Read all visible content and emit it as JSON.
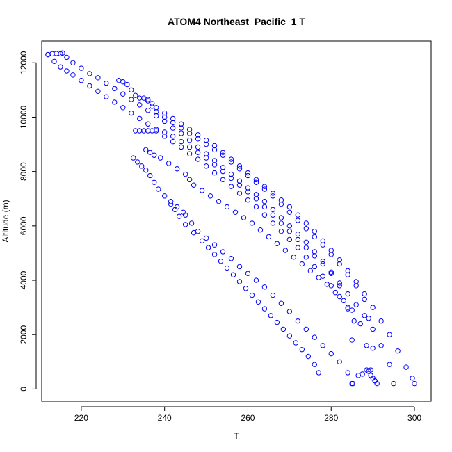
{
  "chart_data": {
    "type": "scatter",
    "title": "ATOM4 Northeast_Pacific_1 T",
    "xlabel": "T",
    "ylabel": "Altitude (m)",
    "xlim": [
      210.5,
      304.0
    ],
    "ylim": [
      -450,
      12800
    ],
    "x_ticks": [
      220,
      240,
      260,
      280,
      300
    ],
    "y_ticks": [
      0,
      2000,
      4000,
      6000,
      8000,
      10000,
      12000
    ],
    "grid": false,
    "marker": "open-circle",
    "point_color": "#0000ff",
    "series": [
      {
        "x": [
          212.0,
          213.5,
          215.0,
          216.5,
          218.0,
          220.0,
          222.0,
          224.0,
          226.0,
          228.0,
          230.0,
          232.0,
          234.0,
          236.0,
          238.0,
          240.0,
          242.0,
          244.0,
          246.0,
          248.0,
          250.0,
          252.0,
          254.0,
          256.0,
          258.0,
          260.0,
          262.0,
          264.0,
          266.0,
          268.0,
          270.0,
          272.0,
          274.0,
          276.0,
          278.0,
          280.0,
          282.0,
          284.0,
          285.5,
          285.2
        ],
        "y": [
          12300,
          12050,
          11850,
          11700,
          11550,
          11350,
          11150,
          10950,
          10750,
          10550,
          10350,
          10150,
          9950,
          9750,
          9550,
          9300,
          9100,
          8900,
          8650,
          8450,
          8200,
          7950,
          7700,
          7450,
          7200,
          6950,
          6700,
          6400,
          6100,
          5800,
          5500,
          5200,
          4850,
          4500,
          4150,
          3800,
          3400,
          2950,
          2500,
          200
        ]
      },
      {
        "x": [
          212.0,
          213.0,
          214.0,
          215.0,
          215.5,
          216.5,
          218.0,
          220.0,
          222.0,
          224.0,
          226.0,
          228.0,
          230.0,
          232.0,
          234.0,
          236.0,
          238.0,
          240.0,
          242.0,
          244.0,
          246.0,
          248.0,
          250.0,
          252.0,
          254.0,
          256.0,
          258.0,
          260.0,
          262.0,
          264.0,
          266.0,
          268.0,
          270.0,
          272.0,
          274.0,
          276.0,
          278.0,
          280.0,
          282.0,
          284.0,
          285.0
        ],
        "y": [
          12300,
          12330,
          12340,
          12330,
          12360,
          12200,
          12000,
          11800,
          11600,
          11450,
          11250,
          11050,
          10850,
          10650,
          10450,
          10250,
          10050,
          9850,
          9600,
          9400,
          9150,
          8900,
          8650,
          8400,
          8150,
          7900,
          7650,
          7400,
          7150,
          6900,
          6600,
          6300,
          6000,
          5700,
          5400,
          5050,
          4700,
          4300,
          3800,
          3000,
          1800
        ]
      },
      {
        "x": [
          229.0,
          230.0,
          231.0,
          232.0,
          233.0,
          234.0,
          235.0,
          236.0,
          237.0,
          238.0,
          240.0,
          242.0,
          244.0,
          246.0,
          248.0,
          250.0,
          252.0,
          254.0,
          256.0,
          258.0,
          260.0,
          262.0,
          264.0,
          266.0,
          268.0,
          270.0,
          272.0,
          274.0,
          276.0,
          278.0,
          280.0,
          282.0,
          284.0,
          286.0,
          288.0,
          289.0,
          290.0,
          290.5
        ],
        "y": [
          11350,
          11300,
          11200,
          11000,
          10800,
          10700,
          10700,
          10650,
          10400,
          10200,
          10000,
          9800,
          9600,
          9400,
          9200,
          9000,
          8800,
          8600,
          8350,
          8100,
          7850,
          7600,
          7350,
          7100,
          6800,
          6500,
          6200,
          5900,
          5600,
          5300,
          4950,
          4600,
          4200,
          3800,
          3300,
          2600,
          1500,
          300
        ]
      },
      {
        "x": [
          233.0,
          234.0,
          235.0,
          236.0,
          237.0,
          238.0,
          240.0,
          242.0,
          244.0,
          246.0,
          248.0,
          250.0,
          252.0,
          254.0,
          256.0,
          258.0,
          260.0,
          262.0,
          264.0,
          266.0,
          268.0,
          270.0,
          272.0,
          274.0,
          276.0,
          278.0,
          280.0,
          282.0,
          284.0,
          286.0,
          288.0,
          290.0,
          292.0,
          294.0,
          295.0
        ],
        "y": [
          9500,
          9500,
          9500,
          9500,
          9500,
          9500,
          9450,
          9300,
          9100,
          8900,
          8700,
          8500,
          8250,
          8000,
          7750,
          7500,
          7250,
          7000,
          6700,
          6400,
          6100,
          5800,
          5500,
          5200,
          4900,
          4600,
          4250,
          3900,
          3500,
          3100,
          2700,
          2200,
          1600,
          900,
          200
        ]
      },
      {
        "x": [
          236.0,
          237.0,
          238.0,
          240.0,
          242.0,
          244.0,
          246.0,
          248.0,
          250.0,
          252.0,
          254.0,
          256.0,
          258.0,
          260.0,
          262.0,
          264.0,
          266.0,
          268.0,
          270.0,
          272.0,
          274.0,
          276.0,
          278.0,
          280.0,
          282.0,
          284.0,
          286.0,
          288.0,
          290.0,
          292.0,
          294.0,
          296.0,
          298.0,
          299.5,
          300.0
        ],
        "y": [
          10600,
          10500,
          10350,
          10150,
          9950,
          9750,
          9550,
          9350,
          9150,
          8950,
          8700,
          8450,
          8200,
          7950,
          7700,
          7450,
          7200,
          6950,
          6700,
          6400,
          6100,
          5800,
          5450,
          5100,
          4750,
          4350,
          3950,
          3500,
          3000,
          2500,
          2000,
          1400,
          800,
          400,
          200
        ]
      },
      {
        "x": [
          235.5,
          236.5,
          237.5,
          239.0,
          241.0,
          243.0,
          245.0,
          246.0,
          247.0,
          249.0,
          251.0,
          253.0,
          255.0,
          257.0,
          259.0,
          261.0,
          263.0,
          265.0,
          267.0,
          269.0,
          271.0,
          273.0,
          275.0,
          277.0,
          279.0,
          281.0,
          283.0,
          285.0,
          287.0,
          288.5,
          289.5
        ],
        "y": [
          8800,
          8700,
          8600,
          8500,
          8300,
          8100,
          7900,
          7700,
          7500,
          7300,
          7100,
          6900,
          6700,
          6500,
          6300,
          6100,
          5850,
          5600,
          5350,
          5100,
          4850,
          4600,
          4350,
          4100,
          3850,
          3550,
          3250,
          2900,
          2400,
          1600,
          700
        ]
      },
      {
        "x": [
          232.5,
          233.5,
          234.5,
          235.5,
          236.5,
          237.5,
          238.5,
          240.0,
          241.5,
          243.0,
          244.5,
          245.0,
          246.5,
          248.0,
          250.0,
          252.0,
          254.0,
          256.0,
          258.0,
          260.0,
          262.0,
          264.0,
          266.0,
          268.0,
          270.0,
          272.0,
          274.0,
          276.0,
          278.0,
          280.0,
          282.0,
          284.0,
          285.0
        ],
        "y": [
          8500,
          8350,
          8200,
          8050,
          7850,
          7600,
          7350,
          7100,
          6900,
          6700,
          6500,
          6400,
          6100,
          5800,
          5550,
          5300,
          5050,
          4800,
          4500,
          4250,
          4000,
          3750,
          3450,
          3150,
          2850,
          2500,
          2200,
          1900,
          1600,
          1300,
          1000,
          600,
          200
        ]
      },
      {
        "x": [
          241.5,
          242.5,
          243.5,
          245.0,
          247.0,
          249.0,
          250.5,
          252.0,
          253.5,
          255.0,
          256.5,
          258.0,
          259.5,
          261.0,
          262.5,
          264.0,
          265.5,
          267.0,
          268.5,
          270.0,
          271.5,
          273.0,
          274.5,
          276.0,
          277.0
        ],
        "y": [
          6800,
          6600,
          6350,
          6050,
          5750,
          5450,
          5200,
          4950,
          4700,
          4450,
          4200,
          3950,
          3700,
          3450,
          3200,
          2950,
          2700,
          2450,
          2200,
          1950,
          1700,
          1450,
          1200,
          900,
          600
        ]
      },
      {
        "x": [
          286.5,
          287.5,
          288.5,
          289.0,
          289.5,
          290.0,
          290.5,
          291.0
        ],
        "y": [
          500,
          550,
          700,
          650,
          500,
          400,
          300,
          200
        ]
      }
    ]
  }
}
